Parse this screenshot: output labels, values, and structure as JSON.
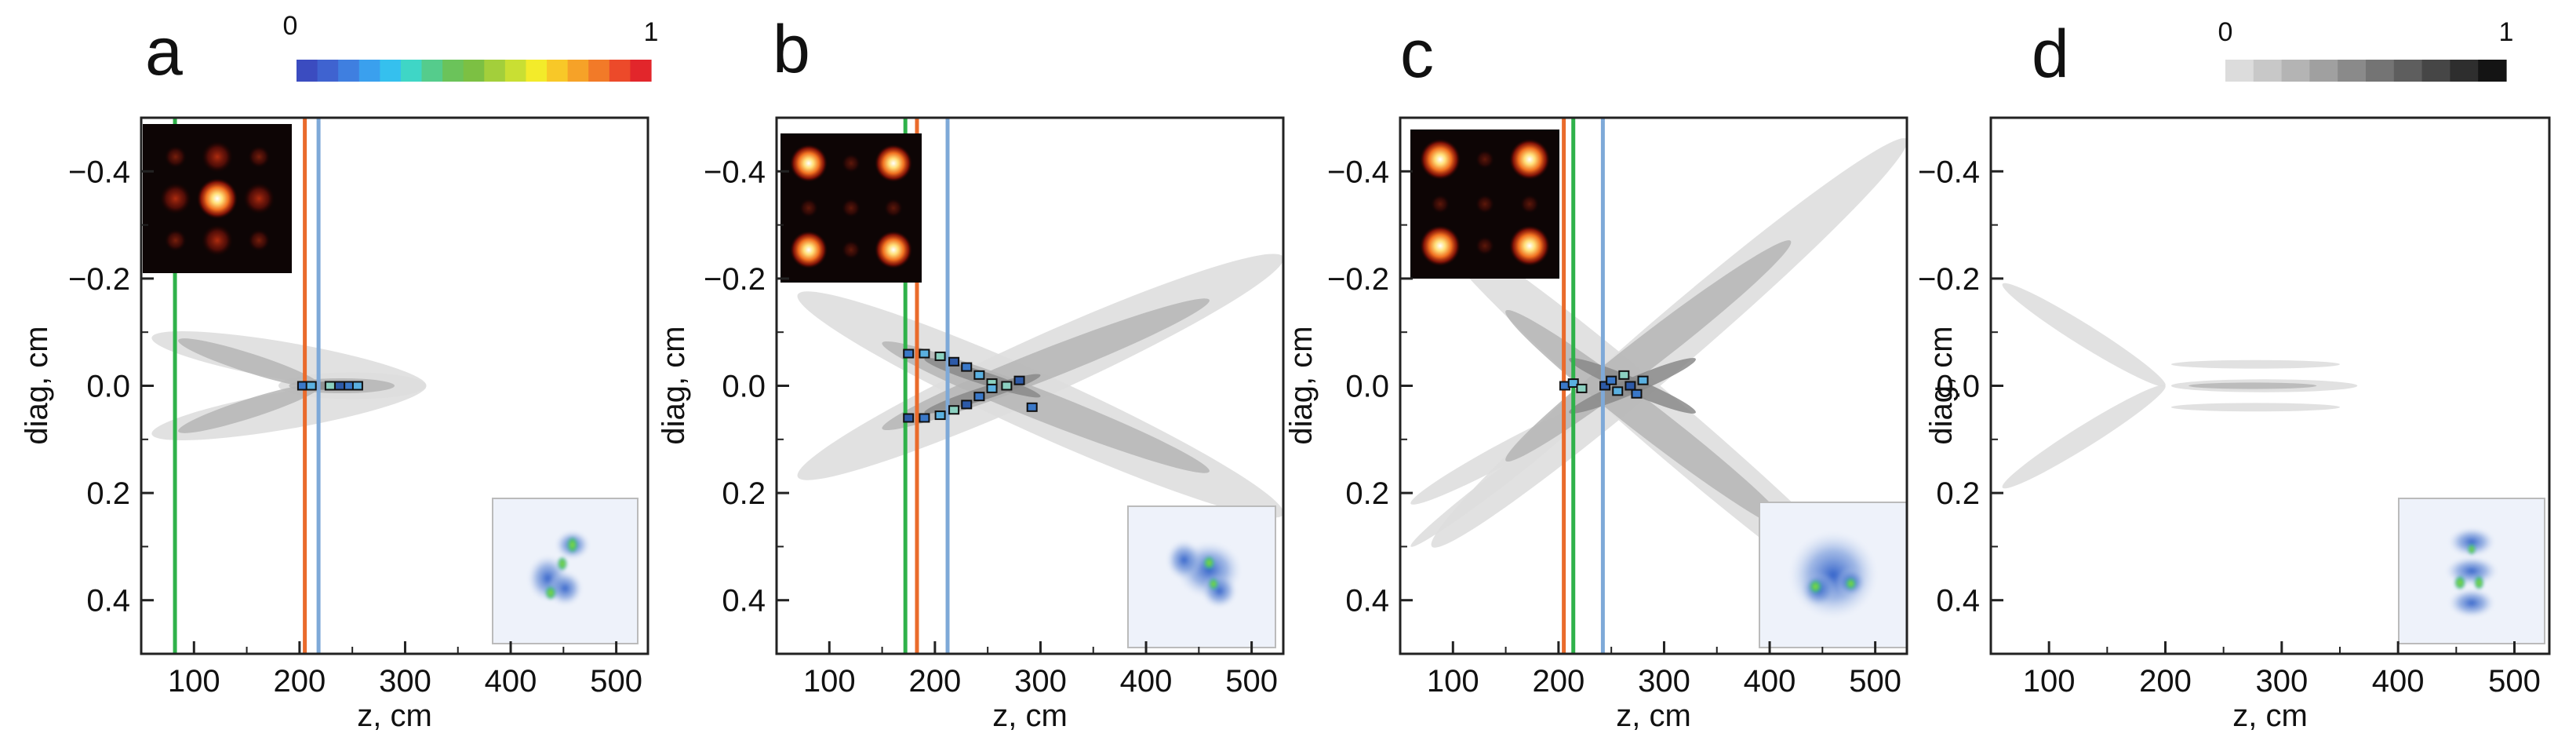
{
  "figure": {
    "colorbars": [
      {
        "name": "jet",
        "min_label": "0",
        "max_label": "1",
        "colors": [
          "#3b4cc0",
          "#3f63d0",
          "#3f7fe0",
          "#3aa0ee",
          "#35c0ee",
          "#3fd6c6",
          "#55cc8c",
          "#6bc35a",
          "#7cc043",
          "#a3cf3b",
          "#c9df33",
          "#f3eb2a",
          "#f8c828",
          "#f6a228",
          "#f27a28",
          "#ec4a2a",
          "#e2262b"
        ]
      },
      {
        "name": "gray",
        "min_label": "0",
        "max_label": "1",
        "colors": [
          "#dcdcdc",
          "#c8c8c8",
          "#b4b4b4",
          "#a0a0a0",
          "#8a8a8a",
          "#747474",
          "#5e5e5e",
          "#464646",
          "#2e2e2e",
          "#141414"
        ]
      }
    ]
  },
  "chart_data": [
    {
      "type": "contour",
      "panel": "a",
      "xlabel": "z, cm",
      "ylabel": "diag, cm",
      "xlim": [
        50,
        530
      ],
      "ylim": [
        0.5,
        -0.5
      ],
      "xticks": [
        100,
        200,
        300,
        400,
        500
      ],
      "yticks": [
        -0.4,
        -0.2,
        0.0,
        0.2,
        0.4
      ],
      "ytick_labels": [
        "−0.4",
        "−0.2",
        "0.0",
        "0.2",
        "0.4"
      ],
      "vlines": [
        {
          "z": 82,
          "color": "#2fb24a"
        },
        {
          "z": 205,
          "color": "#ea6b2c"
        },
        {
          "z": 218,
          "color": "#7ea9d8"
        }
      ],
      "beams": [
        {
          "z1": 60,
          "y1": 0.09,
          "z2": 320,
          "y2": 0.0,
          "width": 0.035,
          "level": 1
        },
        {
          "z1": 60,
          "y1": -0.09,
          "z2": 320,
          "y2": 0.0,
          "width": 0.035,
          "level": 1
        },
        {
          "z1": 85,
          "y1": 0.085,
          "z2": 220,
          "y2": 0.0,
          "width": 0.018,
          "level": 2
        },
        {
          "z1": 85,
          "y1": -0.085,
          "z2": 220,
          "y2": 0.0,
          "width": 0.018,
          "level": 2
        },
        {
          "z1": 180,
          "y1": 0.0,
          "z2": 320,
          "y2": 0.0,
          "width": 0.025,
          "level": 1
        },
        {
          "z1": 190,
          "y1": 0.0,
          "z2": 290,
          "y2": 0.0,
          "width": 0.014,
          "level": 2
        },
        {
          "z1": 200,
          "y1": 0.0,
          "z2": 260,
          "y2": 0.0,
          "width": 0.008,
          "level": 3
        }
      ],
      "markers": [
        {
          "z": 203,
          "y": 0.0
        },
        {
          "z": 211,
          "y": 0.0
        },
        {
          "z": 229,
          "y": 0.0
        },
        {
          "z": 238,
          "y": 0.0
        },
        {
          "z": 247,
          "y": 0.0
        },
        {
          "z": 255,
          "y": 0.0
        }
      ],
      "inset_pattern": "grid3",
      "speckle": [
        [
          0.55,
          0.32,
          0.12,
          0.1,
          "blue"
        ],
        [
          0.38,
          0.55,
          0.14,
          0.16,
          "blue"
        ],
        [
          0.5,
          0.62,
          0.12,
          0.12,
          "blue"
        ],
        [
          0.55,
          0.32,
          0.04,
          0.06,
          "green"
        ],
        [
          0.48,
          0.45,
          0.035,
          0.05,
          "green"
        ],
        [
          0.4,
          0.65,
          0.04,
          0.05,
          "green"
        ]
      ]
    },
    {
      "type": "contour",
      "panel": "b",
      "xlabel": "z, cm",
      "ylabel": "diag, cm",
      "xlim": [
        50,
        530
      ],
      "ylim": [
        0.5,
        -0.5
      ],
      "xticks": [
        100,
        200,
        300,
        400,
        500
      ],
      "yticks": [
        -0.4,
        -0.2,
        0.0,
        0.2,
        0.4
      ],
      "ytick_labels": [
        "−0.4",
        "−0.2",
        "0.0",
        "0.2",
        "0.4"
      ],
      "vlines": [
        {
          "z": 172,
          "color": "#2fb24a"
        },
        {
          "z": 183,
          "color": "#ea6b2c"
        },
        {
          "z": 212,
          "color": "#7ea9d8"
        }
      ],
      "beams": [
        {
          "z1": 70,
          "y1": -0.17,
          "z2": 530,
          "y2": 0.24,
          "width": 0.055,
          "level": 1
        },
        {
          "z1": 70,
          "y1": 0.17,
          "z2": 530,
          "y2": -0.24,
          "width": 0.055,
          "level": 1
        },
        {
          "z1": 150,
          "y1": -0.08,
          "z2": 460,
          "y2": 0.16,
          "width": 0.028,
          "level": 2
        },
        {
          "z1": 150,
          "y1": 0.08,
          "z2": 460,
          "y2": -0.16,
          "width": 0.028,
          "level": 2
        },
        {
          "z1": 190,
          "y1": -0.05,
          "z2": 300,
          "y2": 0.02,
          "width": 0.012,
          "level": 3
        },
        {
          "z1": 190,
          "y1": 0.05,
          "z2": 300,
          "y2": -0.02,
          "width": 0.012,
          "level": 3
        }
      ],
      "markers": [
        {
          "z": 175,
          "y": -0.06
        },
        {
          "z": 190,
          "y": -0.06
        },
        {
          "z": 205,
          "y": -0.055
        },
        {
          "z": 218,
          "y": -0.045
        },
        {
          "z": 230,
          "y": -0.035
        },
        {
          "z": 242,
          "y": -0.02
        },
        {
          "z": 254,
          "y": -0.005
        },
        {
          "z": 175,
          "y": 0.06
        },
        {
          "z": 190,
          "y": 0.06
        },
        {
          "z": 205,
          "y": 0.055
        },
        {
          "z": 218,
          "y": 0.045
        },
        {
          "z": 230,
          "y": 0.035
        },
        {
          "z": 242,
          "y": 0.02
        },
        {
          "z": 254,
          "y": 0.005
        },
        {
          "z": 268,
          "y": 0.0
        },
        {
          "z": 280,
          "y": -0.01
        },
        {
          "z": 292,
          "y": 0.04
        }
      ],
      "inset_pattern": "corners",
      "speckle": [
        [
          0.55,
          0.45,
          0.22,
          0.2,
          "blue"
        ],
        [
          0.38,
          0.38,
          0.12,
          0.14,
          "blue"
        ],
        [
          0.62,
          0.6,
          0.12,
          0.12,
          "blue"
        ],
        [
          0.55,
          0.4,
          0.04,
          0.05,
          "green"
        ],
        [
          0.58,
          0.55,
          0.035,
          0.045,
          "green"
        ]
      ]
    },
    {
      "type": "contour",
      "panel": "c",
      "xlabel": "z, cm",
      "ylabel": "diag, cm",
      "xlim": [
        50,
        530
      ],
      "ylim": [
        0.5,
        -0.5
      ],
      "xticks": [
        100,
        200,
        300,
        400,
        500
      ],
      "yticks": [
        -0.4,
        -0.2,
        0.0,
        0.2,
        0.4
      ],
      "ytick_labels": [
        "−0.4",
        "−0.2",
        "0.0",
        "0.2",
        "0.4"
      ],
      "vlines": [
        {
          "z": 205,
          "color": "#ea6b2c"
        },
        {
          "z": 214,
          "color": "#2fb24a"
        },
        {
          "z": 242,
          "color": "#7ea9d8"
        }
      ],
      "beams": [
        {
          "z1": 80,
          "y1": -0.3,
          "z2": 530,
          "y2": 0.46,
          "width": 0.05,
          "level": 1
        },
        {
          "z1": 80,
          "y1": 0.3,
          "z2": 530,
          "y2": -0.46,
          "width": 0.05,
          "level": 1
        },
        {
          "z1": 150,
          "y1": -0.14,
          "z2": 420,
          "y2": 0.27,
          "width": 0.03,
          "level": 2
        },
        {
          "z1": 150,
          "y1": 0.14,
          "z2": 420,
          "y2": -0.27,
          "width": 0.03,
          "level": 2
        },
        {
          "z1": 210,
          "y1": -0.05,
          "z2": 330,
          "y2": 0.05,
          "width": 0.015,
          "level": 3
        },
        {
          "z1": 210,
          "y1": 0.05,
          "z2": 330,
          "y2": -0.05,
          "width": 0.015,
          "level": 3
        },
        {
          "z1": 60,
          "y1": 0.22,
          "z2": 240,
          "y2": 0.03,
          "width": 0.02,
          "level": 1
        },
        {
          "z1": 60,
          "y1": 0.3,
          "z2": 220,
          "y2": 0.06,
          "width": 0.015,
          "level": 1
        }
      ],
      "markers": [
        {
          "z": 206,
          "y": 0.0
        },
        {
          "z": 214,
          "y": -0.005
        },
        {
          "z": 222,
          "y": 0.005
        },
        {
          "z": 244,
          "y": 0.0
        },
        {
          "z": 250,
          "y": -0.01
        },
        {
          "z": 256,
          "y": 0.01
        },
        {
          "z": 262,
          "y": -0.02
        },
        {
          "z": 268,
          "y": 0.0
        },
        {
          "z": 274,
          "y": 0.015
        },
        {
          "z": 280,
          "y": -0.01
        }
      ],
      "inset_pattern": "corners_bright",
      "speckle": [
        [
          0.5,
          0.5,
          0.3,
          0.3,
          "blue"
        ],
        [
          0.4,
          0.6,
          0.12,
          0.12,
          "blue"
        ],
        [
          0.62,
          0.55,
          0.1,
          0.1,
          "blue"
        ],
        [
          0.38,
          0.58,
          0.045,
          0.05,
          "green"
        ],
        [
          0.62,
          0.56,
          0.04,
          0.045,
          "green"
        ]
      ]
    },
    {
      "type": "contour",
      "panel": "d",
      "xlabel": "z, cm",
      "ylabel": "diag, cm",
      "xlim": [
        50,
        530
      ],
      "ylim": [
        0.5,
        -0.5
      ],
      "xticks": [
        100,
        200,
        300,
        400,
        500
      ],
      "yticks": [
        -0.4,
        -0.2,
        0.0,
        0.2,
        0.4
      ],
      "ytick_labels": [
        "−0.4",
        "−0.2",
        "0.0",
        "0.2",
        "0.4"
      ],
      "vlines": [],
      "beams": [
        {
          "z1": 60,
          "y1": -0.19,
          "z2": 200,
          "y2": 0.0,
          "width": 0.02,
          "level": 1
        },
        {
          "z1": 60,
          "y1": 0.19,
          "z2": 200,
          "y2": 0.0,
          "width": 0.02,
          "level": 1
        },
        {
          "z1": 205,
          "y1": 0.0,
          "z2": 365,
          "y2": 0.0,
          "width": 0.012,
          "level": 1
        },
        {
          "z1": 205,
          "y1": -0.04,
          "z2": 350,
          "y2": -0.04,
          "width": 0.008,
          "level": 1
        },
        {
          "z1": 205,
          "y1": 0.04,
          "z2": 350,
          "y2": 0.04,
          "width": 0.008,
          "level": 1
        },
        {
          "z1": 220,
          "y1": 0.0,
          "z2": 330,
          "y2": 0.0,
          "width": 0.006,
          "level": 2
        }
      ],
      "markers": [],
      "inset_pattern": "none",
      "speckle": [
        [
          0.5,
          0.3,
          0.16,
          0.1,
          "blue"
        ],
        [
          0.5,
          0.5,
          0.18,
          0.1,
          "blue"
        ],
        [
          0.5,
          0.72,
          0.16,
          0.1,
          "blue"
        ],
        [
          0.42,
          0.58,
          0.04,
          0.05,
          "green"
        ],
        [
          0.55,
          0.58,
          0.035,
          0.05,
          "green"
        ],
        [
          0.5,
          0.35,
          0.03,
          0.04,
          "green"
        ]
      ]
    }
  ]
}
